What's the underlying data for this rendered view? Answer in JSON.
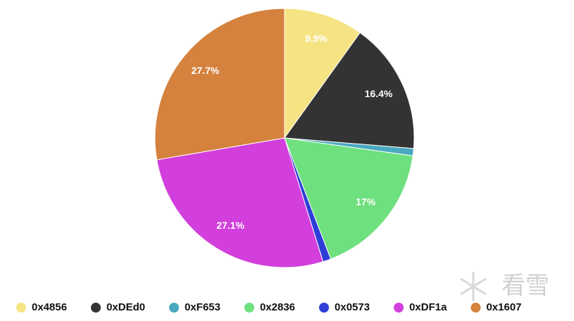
{
  "chart_data": {
    "type": "pie",
    "categories": [
      "0x4856",
      "0xDEd0",
      "0xF653",
      "0x2836",
      "0x0573",
      "0xDF1a",
      "0x1607"
    ],
    "values": [
      9.9,
      16.4,
      0.9,
      17,
      1.0,
      27.1,
      27.7
    ],
    "value_labels": [
      "9.9%",
      "16.4%",
      null,
      "17%",
      null,
      "27.1%",
      "27.7%"
    ],
    "colors": [
      "#f5e384",
      "#333333",
      "#4aa9c0",
      "#6fe07f",
      "#2e3ed8",
      "#d23fdc",
      "#d4823e"
    ],
    "legend": "bottom"
  },
  "watermark": "看雪"
}
